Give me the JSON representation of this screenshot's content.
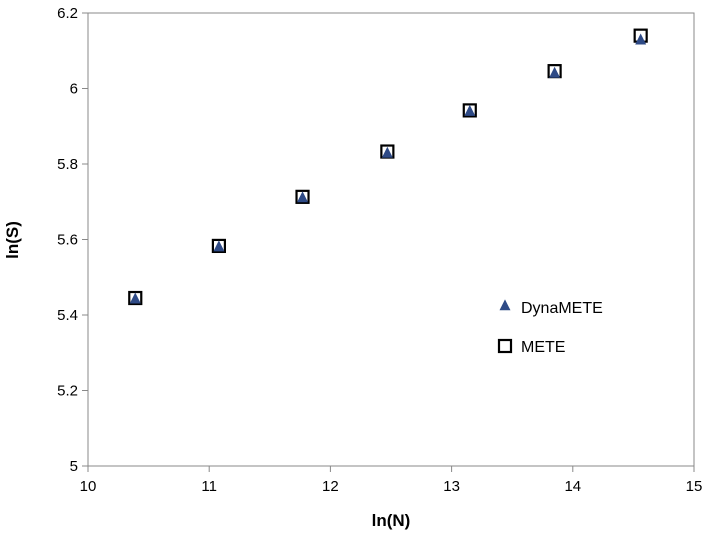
{
  "chart_data": {
    "type": "scatter",
    "title": "",
    "xlabel": "ln(N)",
    "ylabel": "ln(S)",
    "xlim": [
      10,
      15
    ],
    "ylim": [
      5,
      6.2
    ],
    "xticks": [
      10,
      11,
      12,
      13,
      14,
      15
    ],
    "yticks": [
      5,
      5.2,
      5.4,
      5.6,
      5.8,
      6,
      6.2
    ],
    "xtick_labels": [
      "10",
      "11",
      "12",
      "13",
      "14",
      "15"
    ],
    "ytick_labels": [
      "5",
      "5.2",
      "5.4",
      "5.6",
      "5.8",
      "6",
      "6.2"
    ],
    "grid": false,
    "legend_position": "right-middle",
    "series": [
      {
        "name": "DynaMETE",
        "marker": "triangle",
        "color": "#2e4a86",
        "x": [
          10.39,
          11.08,
          11.77,
          12.47,
          13.15,
          13.85,
          14.56
        ],
        "y": [
          5.442,
          5.58,
          5.71,
          5.828,
          5.939,
          6.04,
          6.128
        ]
      },
      {
        "name": "METE",
        "marker": "open-square",
        "color": "#000000",
        "x": [
          10.39,
          11.08,
          11.77,
          12.47,
          13.15,
          13.85,
          14.56
        ],
        "y": [
          5.445,
          5.583,
          5.713,
          5.833,
          5.942,
          6.046,
          6.14
        ]
      }
    ]
  }
}
